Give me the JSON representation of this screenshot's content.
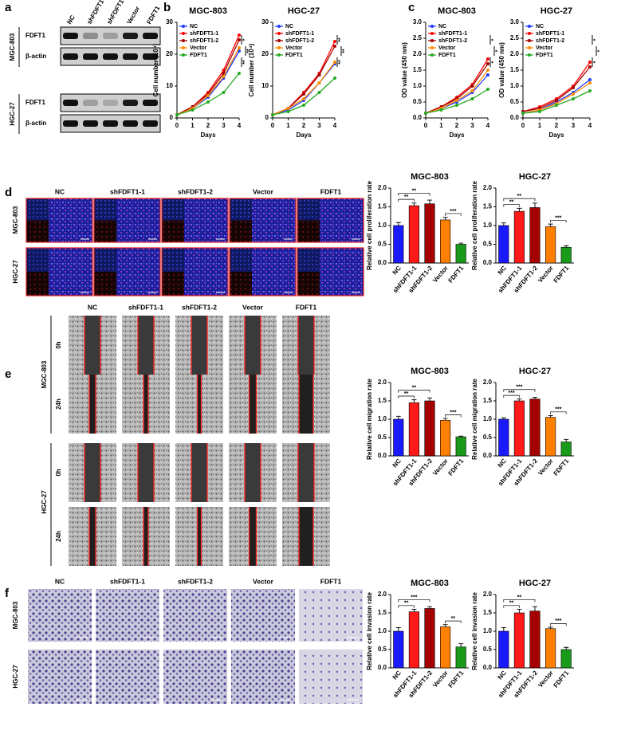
{
  "panel_labels": [
    "a",
    "b",
    "c",
    "d",
    "e",
    "f"
  ],
  "blot": {
    "lanes": [
      "NC",
      "shFDFT1-1",
      "shFDFT1-2",
      "Vector",
      "FDFT1"
    ],
    "groups": [
      {
        "name": "MGC-803",
        "rows": [
          "FDFT1",
          "β-actin"
        ]
      },
      {
        "name": "HGC-27",
        "rows": [
          "FDFT1",
          "β-actin"
        ]
      }
    ]
  },
  "proliferation_images": {
    "columns": [
      "NC",
      "shFDFT1-1",
      "shFDFT1-2",
      "Vector",
      "FDFT1"
    ],
    "rows": [
      "MGC-803",
      "HGC-27"
    ]
  },
  "wound_images": {
    "columns": [
      "NC",
      "shFDFT1-1",
      "shFDFT1-2",
      "Vector",
      "FDFT1"
    ],
    "cell_lines": [
      "MGC-803",
      "HGC-27"
    ],
    "times": [
      "0h",
      "24h"
    ]
  },
  "invasion_images": {
    "columns": [
      "NC",
      "shFDFT1-1",
      "shFDFT1-2",
      "Vector",
      "FDFT1"
    ],
    "rows": [
      "MGC-803",
      "HGC-27"
    ]
  },
  "chart_data": [
    {
      "type": "line",
      "title": "MGC-803",
      "x_label": "Days",
      "y_label": "Cell number (10⁴)",
      "x": [
        0,
        1,
        2,
        3,
        4
      ],
      "xlim": [
        0,
        4
      ],
      "xticks": [
        0,
        1,
        2,
        3,
        4
      ],
      "ylim": [
        0,
        30
      ],
      "yticks": [
        0,
        10,
        20,
        30
      ],
      "legend": "top-left",
      "series": [
        {
          "name": "NC",
          "color": "#1f3cff",
          "values": [
            1,
            3,
            6.5,
            12.5,
            21
          ]
        },
        {
          "name": "shFDFT1-1",
          "color": "#ff0000",
          "values": [
            1,
            3.5,
            8,
            15,
            26
          ]
        },
        {
          "name": "shFDFT1-2",
          "color": "#a00000",
          "values": [
            1,
            3.5,
            7.5,
            14,
            24.5
          ]
        },
        {
          "name": "Vector",
          "color": "#ff8c00",
          "values": [
            1,
            3,
            7,
            13,
            22
          ]
        },
        {
          "name": "FDFT1",
          "color": "#22aa22",
          "values": [
            1,
            2.5,
            5,
            8,
            14
          ]
        }
      ],
      "annotations": [
        "*",
        "**",
        "**"
      ]
    },
    {
      "type": "line",
      "title": "HGC-27",
      "x_label": "Days",
      "y_label": "Cell number (10⁴)",
      "x": [
        0,
        1,
        2,
        3,
        4
      ],
      "xlim": [
        0,
        4
      ],
      "xticks": [
        0,
        1,
        2,
        3,
        4
      ],
      "ylim": [
        0,
        30
      ],
      "yticks": [
        0,
        10,
        20,
        30
      ],
      "legend": "top-left",
      "series": [
        {
          "name": "NC",
          "color": "#1f3cff",
          "values": [
            1,
            2.5,
            5.5,
            11,
            17
          ]
        },
        {
          "name": "shFDFT1-1",
          "color": "#ff0000",
          "values": [
            1,
            3,
            8,
            14,
            24
          ]
        },
        {
          "name": "shFDFT1-2",
          "color": "#a00000",
          "values": [
            1,
            3,
            7.5,
            13.5,
            22.5
          ]
        },
        {
          "name": "Vector",
          "color": "#ff8c00",
          "values": [
            1,
            3,
            6,
            11,
            17.5
          ]
        },
        {
          "name": "FDFT1",
          "color": "#22aa22",
          "values": [
            1,
            2,
            4,
            8,
            12.5
          ]
        }
      ],
      "annotations": [
        "**",
        "**",
        "**"
      ]
    },
    {
      "type": "line",
      "title": "MGC-803",
      "x_label": "Days",
      "y_label": "OD value (450 nm)",
      "x": [
        0,
        1,
        2,
        3,
        4
      ],
      "xlim": [
        0,
        4
      ],
      "xticks": [
        0,
        1,
        2,
        3,
        4
      ],
      "ylim": [
        0,
        3
      ],
      "yticks": [
        {
          "value": 0,
          "label": "0.0"
        },
        0.5,
        {
          "value": 1,
          "label": "1.0"
        },
        1.5,
        {
          "value": 2,
          "label": "2.0"
        },
        2.5,
        {
          "value": 3,
          "label": "3.0"
        }
      ],
      "legend": "top-left",
      "series": [
        {
          "name": "NC",
          "color": "#1f3cff",
          "values": [
            0.15,
            0.3,
            0.5,
            0.8,
            1.35
          ]
        },
        {
          "name": "shFDFT1-1",
          "color": "#ff0000",
          "values": [
            0.15,
            0.35,
            0.65,
            1.05,
            1.85
          ]
        },
        {
          "name": "shFDFT1-2",
          "color": "#a00000",
          "values": [
            0.15,
            0.35,
            0.6,
            1,
            1.7
          ]
        },
        {
          "name": "Vector",
          "color": "#ff8c00",
          "values": [
            0.15,
            0.3,
            0.55,
            0.85,
            1.5
          ]
        },
        {
          "name": "FDFT1",
          "color": "#22aa22",
          "values": [
            0.15,
            0.25,
            0.4,
            0.6,
            0.9
          ]
        }
      ],
      "annotations": [
        "*",
        "*",
        "*"
      ]
    },
    {
      "type": "line",
      "title": "HGC-27",
      "x_label": "Days",
      "y_label": "OD value (450 nm)",
      "x": [
        0,
        1,
        2,
        3,
        4
      ],
      "xlim": [
        0,
        4
      ],
      "xticks": [
        0,
        1,
        2,
        3,
        4
      ],
      "ylim": [
        0,
        3
      ],
      "yticks": [
        {
          "value": 0,
          "label": "0.0"
        },
        0.5,
        {
          "value": 1,
          "label": "1.0"
        },
        1.5,
        {
          "value": 2,
          "label": "2.0"
        },
        2.5,
        {
          "value": 3,
          "label": "3.0"
        }
      ],
      "legend": "top-left",
      "series": [
        {
          "name": "NC",
          "color": "#1f3cff",
          "values": [
            0.15,
            0.25,
            0.5,
            0.8,
            1.2
          ]
        },
        {
          "name": "shFDFT1-1",
          "color": "#ff0000",
          "values": [
            0.2,
            0.35,
            0.6,
            1,
            1.75
          ]
        },
        {
          "name": "shFDFT1-2",
          "color": "#a00000",
          "values": [
            0.2,
            0.3,
            0.55,
            0.95,
            1.6
          ]
        },
        {
          "name": "Vector",
          "color": "#ff8c00",
          "values": [
            0.15,
            0.25,
            0.45,
            0.75,
            1.1
          ]
        },
        {
          "name": "FDFT1",
          "color": "#22aa22",
          "values": [
            0.15,
            0.2,
            0.4,
            0.6,
            0.85
          ]
        }
      ],
      "annotations": [
        "*",
        "*",
        "*"
      ]
    },
    {
      "type": "bar",
      "title": "MGC-803",
      "y_label": "Relative cell proliferation rate",
      "categories": [
        "NC",
        "shFDFT1-1",
        "shFDFT1-2",
        "Vector",
        "FDFT1"
      ],
      "values": [
        1,
        1.53,
        1.58,
        1.15,
        0.5
      ],
      "errors": [
        0.08,
        0.07,
        0.1,
        0.07,
        0.03
      ],
      "colors": [
        "#1a1aff",
        "#ff1a1a",
        "#a50000",
        "#ff7f00",
        "#1a9a1a"
      ],
      "ylim": [
        0,
        2
      ],
      "yticks": [
        {
          "value": 0,
          "label": "0.0"
        },
        0.5,
        {
          "value": 1,
          "label": "1.0"
        },
        1.5,
        {
          "value": 2,
          "label": "2.0"
        }
      ],
      "annotations": [
        "**",
        "**",
        "***"
      ]
    },
    {
      "type": "bar",
      "title": "HGC-27",
      "y_label": "Relative cell proliferation rate",
      "categories": [
        "NC",
        "shFDFT1-1",
        "shFDFT1-2",
        "Vector",
        "FDFT1"
      ],
      "values": [
        1,
        1.38,
        1.48,
        0.97,
        0.42
      ],
      "errors": [
        0.07,
        0.08,
        0.12,
        0.07,
        0.04
      ],
      "colors": [
        "#1a1aff",
        "#ff1a1a",
        "#a50000",
        "#ff7f00",
        "#1a9a1a"
      ],
      "ylim": [
        0,
        2
      ],
      "yticks": [
        {
          "value": 0,
          "label": "0.0"
        },
        0.5,
        {
          "value": 1,
          "label": "1.0"
        },
        1.5,
        {
          "value": 2,
          "label": "2.0"
        }
      ],
      "annotations": [
        "**",
        "**",
        "***"
      ]
    },
    {
      "type": "bar",
      "title": "MGC-803",
      "y_label": "Relative cell migration rate",
      "categories": [
        "NC",
        "shFDFT1-1",
        "shFDFT1-2",
        "Vector",
        "FDFT1"
      ],
      "values": [
        1,
        1.45,
        1.5,
        0.97,
        0.52
      ],
      "errors": [
        0.08,
        0.08,
        0.08,
        0.05,
        0.02
      ],
      "colors": [
        "#1a1aff",
        "#ff1a1a",
        "#a50000",
        "#ff7f00",
        "#1a9a1a"
      ],
      "ylim": [
        0,
        2
      ],
      "yticks": [
        {
          "value": 0,
          "label": "0.0"
        },
        0.5,
        {
          "value": 1,
          "label": "1.0"
        },
        1.5,
        {
          "value": 2,
          "label": "2.0"
        }
      ],
      "annotations": [
        "**",
        "**",
        "***"
      ]
    },
    {
      "type": "bar",
      "title": "HGC-27",
      "y_label": "Relative cell migration rate",
      "categories": [
        "NC",
        "shFDFT1-1",
        "shFDFT1-2",
        "Vector",
        "FDFT1"
      ],
      "values": [
        1,
        1.5,
        1.55,
        1.05,
        0.38
      ],
      "errors": [
        0.04,
        0.05,
        0.05,
        0.05,
        0.07
      ],
      "colors": [
        "#1a1aff",
        "#ff1a1a",
        "#a50000",
        "#ff7f00",
        "#1a9a1a"
      ],
      "ylim": [
        0,
        2
      ],
      "yticks": [
        {
          "value": 0,
          "label": "0.0"
        },
        0.5,
        {
          "value": 1,
          "label": "1.0"
        },
        1.5,
        {
          "value": 2,
          "label": "2.0"
        }
      ],
      "annotations": [
        "***",
        "***",
        "***"
      ]
    },
    {
      "type": "bar",
      "title": "MGC-803",
      "y_label": "Relative cell invasion rate",
      "categories": [
        "NC",
        "shFDFT1-1",
        "shFDFT1-2",
        "Vector",
        "FDFT1"
      ],
      "values": [
        1,
        1.53,
        1.62,
        1.12,
        0.57
      ],
      "errors": [
        0.1,
        0.07,
        0.05,
        0.06,
        0.09
      ],
      "colors": [
        "#1a1aff",
        "#ff1a1a",
        "#a50000",
        "#ff7f00",
        "#1a9a1a"
      ],
      "ylim": [
        0,
        2
      ],
      "yticks": [
        {
          "value": 0,
          "label": "0.0"
        },
        0.5,
        {
          "value": 1,
          "label": "1.0"
        },
        1.5,
        {
          "value": 2,
          "label": "2.0"
        }
      ],
      "annotations": [
        "**",
        "***",
        "**"
      ]
    },
    {
      "type": "bar",
      "title": "HGC-27",
      "y_label": "Relative cell invasion rate",
      "categories": [
        "NC",
        "shFDFT1-1",
        "shFDFT1-2",
        "Vector",
        "FDFT1"
      ],
      "values": [
        1,
        1.5,
        1.55,
        1.07,
        0.5
      ],
      "errors": [
        0.1,
        0.1,
        0.12,
        0.04,
        0.06
      ],
      "colors": [
        "#1a1aff",
        "#ff1a1a",
        "#a50000",
        "#ff7f00",
        "#1a9a1a"
      ],
      "ylim": [
        0,
        2
      ],
      "yticks": [
        {
          "value": 0,
          "label": "0.0"
        },
        0.5,
        {
          "value": 1,
          "label": "1.0"
        },
        1.5,
        {
          "value": 2,
          "label": "2.0"
        }
      ],
      "annotations": [
        "**",
        "**",
        "***"
      ]
    }
  ]
}
